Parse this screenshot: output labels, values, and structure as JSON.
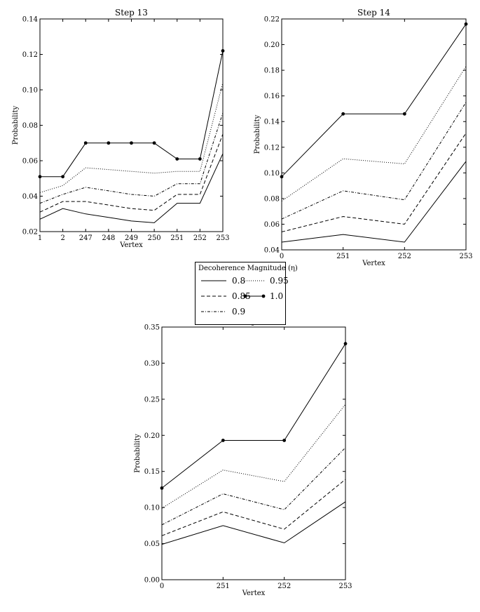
{
  "chart_data": [
    {
      "type": "line",
      "title": "Step 13",
      "xlabel": "Vertex",
      "ylabel": "Probability",
      "categories": [
        "1",
        "2",
        "247",
        "248",
        "249",
        "250",
        "251",
        "252",
        "253"
      ],
      "ylim": [
        0.02,
        0.14
      ],
      "yticks": [
        "0.02",
        "0.04",
        "0.06",
        "0.08",
        "0.10",
        "0.12",
        "0.14"
      ],
      "series": [
        {
          "name": "0.8",
          "style": "solid",
          "values": [
            0.027,
            0.033,
            0.03,
            0.028,
            0.026,
            0.025,
            0.036,
            0.036,
            0.064
          ]
        },
        {
          "name": "0.85",
          "style": "dashed",
          "values": [
            0.031,
            0.037,
            0.037,
            0.035,
            0.033,
            0.032,
            0.041,
            0.041,
            0.075
          ]
        },
        {
          "name": "0.9",
          "style": "dashdot",
          "values": [
            0.036,
            0.041,
            0.045,
            0.043,
            0.041,
            0.04,
            0.047,
            0.047,
            0.087
          ]
        },
        {
          "name": "0.95",
          "style": "dotted",
          "values": [
            0.042,
            0.046,
            0.056,
            0.055,
            0.054,
            0.053,
            0.054,
            0.054,
            0.104
          ]
        },
        {
          "name": "1.0",
          "style": "marker",
          "values": [
            0.051,
            0.051,
            0.07,
            0.07,
            0.07,
            0.07,
            0.061,
            0.061,
            0.122
          ]
        }
      ]
    },
    {
      "type": "line",
      "title": "Step 14",
      "xlabel": "Vertex",
      "ylabel": "Probability",
      "categories": [
        "0",
        "251",
        "252",
        "253"
      ],
      "ylim": [
        0.04,
        0.22
      ],
      "yticks": [
        "0.04",
        "0.06",
        "0.08",
        "0.10",
        "0.12",
        "0.14",
        "0.16",
        "0.18",
        "0.20",
        "0.22"
      ],
      "series": [
        {
          "name": "0.8",
          "style": "solid",
          "values": [
            0.046,
            0.052,
            0.046,
            0.109
          ]
        },
        {
          "name": "0.85",
          "style": "dashed",
          "values": [
            0.054,
            0.066,
            0.06,
            0.131
          ]
        },
        {
          "name": "0.9",
          "style": "dashdot",
          "values": [
            0.064,
            0.086,
            0.079,
            0.155
          ]
        },
        {
          "name": "0.95",
          "style": "dotted",
          "values": [
            0.078,
            0.111,
            0.107,
            0.183
          ]
        },
        {
          "name": "1.0",
          "style": "marker",
          "values": [
            0.097,
            0.146,
            0.146,
            0.216
          ]
        }
      ]
    },
    {
      "type": "line",
      "title": "Step 15",
      "xlabel": "Vertex",
      "ylabel": "Probability",
      "categories": [
        "0",
        "251",
        "252",
        "253"
      ],
      "ylim": [
        0.0,
        0.35
      ],
      "yticks": [
        "0.00",
        "0.05",
        "0.10",
        "0.15",
        "0.20",
        "0.25",
        "0.30",
        "0.35"
      ],
      "series": [
        {
          "name": "0.8",
          "style": "solid",
          "values": [
            0.049,
            0.075,
            0.051,
            0.108
          ]
        },
        {
          "name": "0.85",
          "style": "dashed",
          "values": [
            0.061,
            0.094,
            0.07,
            0.139
          ]
        },
        {
          "name": "0.9",
          "style": "dashdot",
          "values": [
            0.076,
            0.119,
            0.097,
            0.183
          ]
        },
        {
          "name": "0.95",
          "style": "dotted",
          "values": [
            0.099,
            0.152,
            0.136,
            0.243
          ]
        },
        {
          "name": "1.0",
          "style": "marker",
          "values": [
            0.127,
            0.193,
            0.193,
            0.327
          ]
        }
      ]
    }
  ],
  "legend": {
    "title": "Decoherence Magnitude (η)",
    "items": [
      {
        "label": "0.8",
        "style": "solid"
      },
      {
        "label": "0.85",
        "style": "dashed"
      },
      {
        "label": "0.9",
        "style": "dashdot"
      },
      {
        "label": "0.95",
        "style": "dotted"
      },
      {
        "label": "1.0",
        "style": "marker"
      }
    ]
  }
}
